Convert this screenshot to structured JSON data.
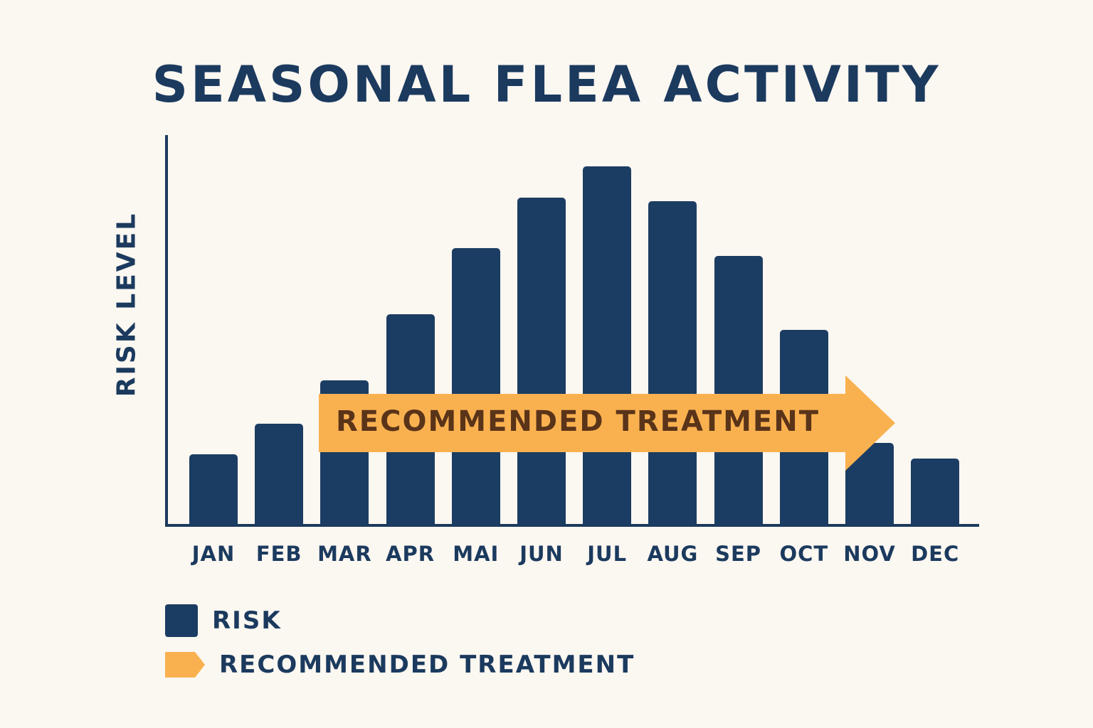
{
  "chart_data": {
    "type": "bar",
    "title": "SEASONAL FLEA ACTIVITY",
    "xlabel": "",
    "ylabel": "RISK LEVEL",
    "ylim": [
      0,
      100
    ],
    "grid": false,
    "legend_position": "bottom-left",
    "categories": [
      "JAN",
      "FEB",
      "MAR",
      "APR",
      "MAI",
      "JUN",
      "JUL",
      "AUG",
      "SEP",
      "OCT",
      "NOV",
      "DEC"
    ],
    "series": [
      {
        "name": "RISK",
        "color": "#1c3d63",
        "values": [
          18,
          26,
          37,
          54,
          71,
          84,
          92,
          83,
          69,
          50,
          21,
          17
        ]
      }
    ],
    "annotations": [
      {
        "type": "arrow",
        "label": "RECOMMENDED TREATMENT",
        "color": "#f9b150",
        "text_color": "#5a3419",
        "from": "MAR",
        "to": "NOV"
      }
    ],
    "legend": [
      {
        "label": "RISK",
        "shape": "square",
        "color": "#1c3d63"
      },
      {
        "label": "RECOMMENDED TREATMENT",
        "shape": "arrow",
        "color": "#f9b150"
      }
    ]
  },
  "colors": {
    "background": "#fbf7f1",
    "primary": "#1c3d63",
    "accent": "#f9b150",
    "arrow_text": "#5a3419"
  }
}
